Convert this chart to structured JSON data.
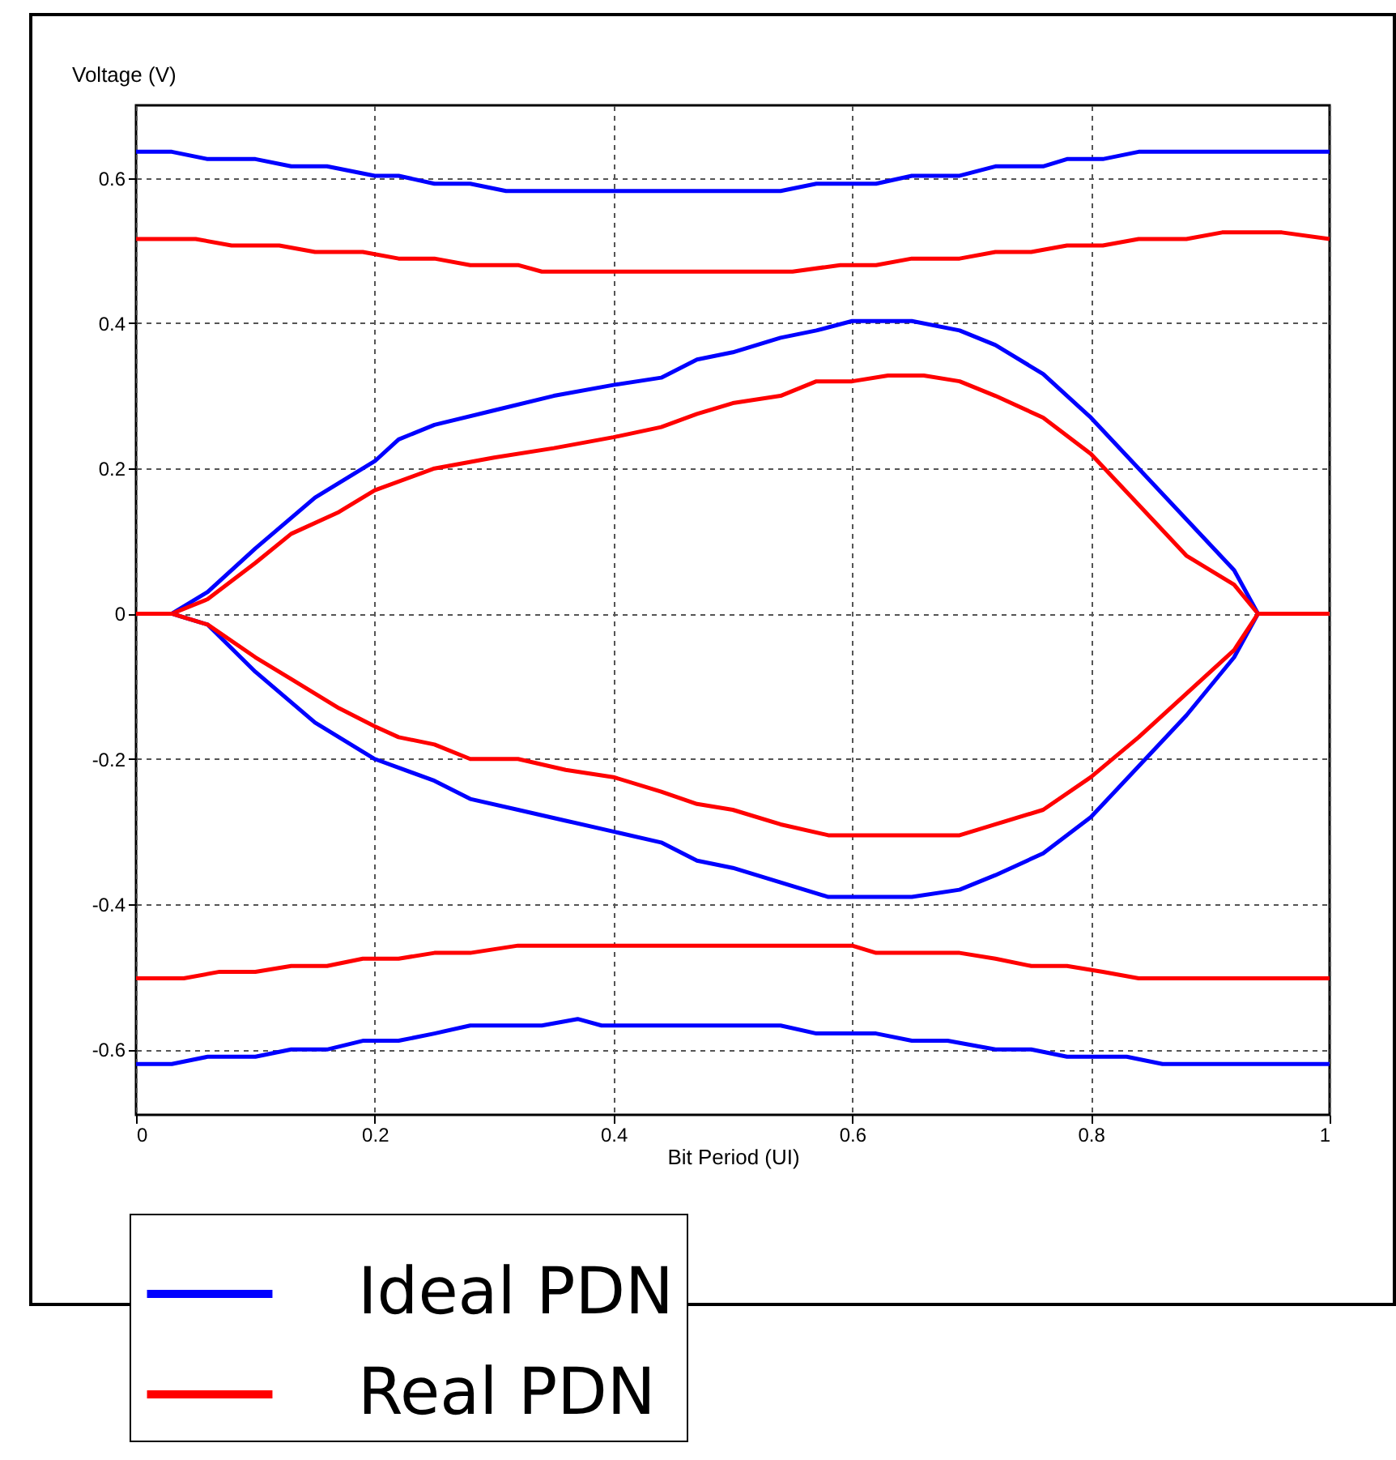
{
  "chart_data": {
    "type": "line",
    "xlabel": "Bit Period (UI)",
    "ylabel": "Voltage (V)",
    "xlim": [
      0,
      1
    ],
    "ylim": [
      -0.69,
      0.7
    ],
    "xticks": [
      0,
      0.2,
      0.4,
      0.6,
      0.8,
      1
    ],
    "yticks": [
      -0.6,
      -0.4,
      -0.2,
      0,
      0.2,
      0.4,
      0.6
    ],
    "grid": true,
    "legend": "bottom",
    "line_style": "solid",
    "marker": "none",
    "series": [
      {
        "name": "Ideal PDN",
        "color": "#0000ff",
        "x": [
          0,
          0.03,
          0.06,
          0.1,
          0.13,
          0.16,
          0.2,
          0.22,
          0.25,
          0.28,
          0.31,
          0.54,
          0.57,
          0.62,
          0.65,
          0.69,
          0.72,
          0.76,
          0.78,
          0.81,
          0.84,
          1
        ],
        "values": [
          0.636,
          0.636,
          0.626,
          0.626,
          0.616,
          0.616,
          0.603,
          0.603,
          0.592,
          0.592,
          0.582,
          0.582,
          0.592,
          0.592,
          0.603,
          0.603,
          0.616,
          0.616,
          0.626,
          0.626,
          0.636,
          0.636
        ]
      },
      {
        "name": "Real PDN",
        "color": "#ff0000",
        "x": [
          0,
          0.05,
          0.08,
          0.12,
          0.15,
          0.19,
          0.22,
          0.25,
          0.28,
          0.32,
          0.34,
          0.55,
          0.59,
          0.62,
          0.65,
          0.69,
          0.72,
          0.75,
          0.78,
          0.81,
          0.84,
          0.88,
          0.91,
          0.96,
          1
        ],
        "values": [
          0.516,
          0.516,
          0.507,
          0.507,
          0.498,
          0.498,
          0.489,
          0.489,
          0.48,
          0.48,
          0.471,
          0.471,
          0.48,
          0.48,
          0.489,
          0.489,
          0.498,
          0.498,
          0.507,
          0.507,
          0.516,
          0.516,
          0.525,
          0.525,
          0.516
        ]
      },
      {
        "color": "#0000ff",
        "x": [
          0,
          0.03,
          0.06,
          0.1,
          0.15,
          0.2,
          0.22,
          0.25,
          0.3,
          0.35,
          0.4,
          0.44,
          0.47,
          0.5,
          0.54,
          0.57,
          0.6,
          0.65,
          0.69,
          0.72,
          0.76,
          0.8,
          0.84,
          0.88,
          0.92,
          0.94,
          1
        ],
        "values": [
          0,
          0,
          0.03,
          0.09,
          0.16,
          0.21,
          0.24,
          0.26,
          0.28,
          0.3,
          0.315,
          0.325,
          0.35,
          0.36,
          0.38,
          0.39,
          0.403,
          0.403,
          0.39,
          0.37,
          0.33,
          0.27,
          0.2,
          0.13,
          0.06,
          0,
          0
        ]
      },
      {
        "color": "#ff0000",
        "x": [
          0,
          0.03,
          0.06,
          0.1,
          0.13,
          0.17,
          0.2,
          0.25,
          0.3,
          0.35,
          0.4,
          0.44,
          0.47,
          0.5,
          0.54,
          0.57,
          0.6,
          0.63,
          0.66,
          0.69,
          0.72,
          0.76,
          0.8,
          0.84,
          0.88,
          0.92,
          0.94,
          1
        ],
        "values": [
          0,
          0,
          0.02,
          0.07,
          0.11,
          0.14,
          0.17,
          0.2,
          0.215,
          0.228,
          0.243,
          0.257,
          0.275,
          0.29,
          0.3,
          0.32,
          0.32,
          0.328,
          0.328,
          0.32,
          0.3,
          0.27,
          0.22,
          0.15,
          0.08,
          0.04,
          0,
          0
        ]
      },
      {
        "color": "#0000ff",
        "x": [
          0,
          0.03,
          0.06,
          0.1,
          0.15,
          0.2,
          0.25,
          0.28,
          0.32,
          0.36,
          0.4,
          0.44,
          0.47,
          0.5,
          0.54,
          0.58,
          0.65,
          0.69,
          0.72,
          0.76,
          0.8,
          0.84,
          0.88,
          0.92,
          0.94,
          1
        ],
        "values": [
          0,
          0,
          -0.015,
          -0.08,
          -0.15,
          -0.2,
          -0.23,
          -0.255,
          -0.27,
          -0.285,
          -0.3,
          -0.315,
          -0.34,
          -0.35,
          -0.37,
          -0.39,
          -0.39,
          -0.38,
          -0.36,
          -0.33,
          -0.28,
          -0.21,
          -0.14,
          -0.06,
          0,
          0
        ]
      },
      {
        "color": "#ff0000",
        "x": [
          0,
          0.03,
          0.06,
          0.1,
          0.13,
          0.17,
          0.2,
          0.22,
          0.25,
          0.28,
          0.32,
          0.36,
          0.4,
          0.44,
          0.47,
          0.5,
          0.54,
          0.58,
          0.69,
          0.72,
          0.76,
          0.8,
          0.84,
          0.88,
          0.92,
          0.94,
          1
        ],
        "values": [
          0,
          0,
          -0.015,
          -0.06,
          -0.09,
          -0.13,
          -0.155,
          -0.17,
          -0.18,
          -0.2,
          -0.2,
          -0.215,
          -0.225,
          -0.245,
          -0.262,
          -0.27,
          -0.29,
          -0.305,
          -0.305,
          -0.29,
          -0.27,
          -0.225,
          -0.17,
          -0.11,
          -0.05,
          0,
          0
        ]
      },
      {
        "color": "#ff0000",
        "x": [
          0,
          0.04,
          0.07,
          0.1,
          0.13,
          0.16,
          0.19,
          0.22,
          0.25,
          0.28,
          0.32,
          0.6,
          0.62,
          0.69,
          0.72,
          0.75,
          0.78,
          0.81,
          0.84,
          1
        ],
        "values": [
          -0.502,
          -0.502,
          -0.493,
          -0.493,
          -0.485,
          -0.485,
          -0.475,
          -0.475,
          -0.467,
          -0.467,
          -0.457,
          -0.457,
          -0.467,
          -0.467,
          -0.475,
          -0.485,
          -0.485,
          -0.493,
          -0.502,
          -0.502
        ]
      },
      {
        "color": "#0000ff",
        "x": [
          0,
          0.03,
          0.06,
          0.1,
          0.13,
          0.16,
          0.19,
          0.22,
          0.25,
          0.28,
          0.34,
          0.37,
          0.39,
          0.54,
          0.57,
          0.62,
          0.65,
          0.68,
          0.72,
          0.75,
          0.78,
          0.83,
          0.86,
          1
        ],
        "values": [
          -0.62,
          -0.62,
          -0.61,
          -0.61,
          -0.6,
          -0.6,
          -0.588,
          -0.588,
          -0.578,
          -0.567,
          -0.567,
          -0.558,
          -0.567,
          -0.567,
          -0.578,
          -0.578,
          -0.588,
          -0.588,
          -0.6,
          -0.6,
          -0.61,
          -0.61,
          -0.62,
          -0.62
        ]
      }
    ]
  }
}
